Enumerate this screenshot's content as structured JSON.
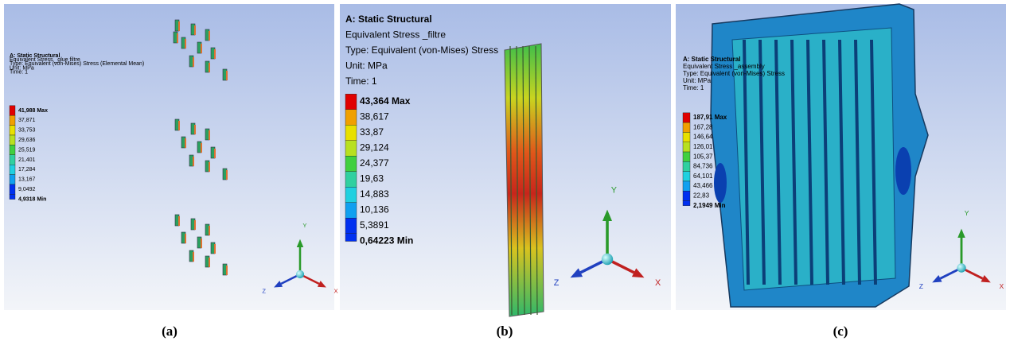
{
  "panels": [
    {
      "caption": "(a)",
      "header": [
        "A: Static Structural",
        "Equivalent Stress _glue filtre",
        "Type: Equivalent (von-Mises) Stress (Elemental Mean)",
        "Unit: MPa",
        "Time: 1"
      ],
      "legend": [
        "41,988 Max",
        "37,871",
        "33,753",
        "29,636",
        "25,519",
        "21,401",
        "17,284",
        "13,167",
        "9,0492",
        "4,9318 Min"
      ],
      "axes": [
        "X",
        "Y",
        "Z"
      ]
    },
    {
      "caption": "(b)",
      "header": [
        "A: Static Structural",
        "Equivalent Stress _filtre",
        "Type: Equivalent (von-Mises) Stress",
        "Unit: MPa",
        "Time: 1"
      ],
      "legend": [
        "43,364 Max",
        "38,617",
        "33,87",
        "29,124",
        "24,377",
        "19,63",
        "14,883",
        "10,136",
        "5,3891",
        "0,64223 Min"
      ],
      "axes": [
        "X",
        "Y",
        "Z"
      ]
    },
    {
      "caption": "(c)",
      "header": [
        "A: Static Structural",
        "Equivalent Stress _assembly",
        "Type: Equivalent (von-Mises) Stress",
        "Unit: MPa",
        "Time: 1"
      ],
      "legend": [
        "187,91 Max",
        "167,28",
        "146,64",
        "126,01",
        "105,37",
        "84,736",
        "64,101",
        "43,466",
        "22,83",
        "2,1949 Min"
      ],
      "axes": [
        "X",
        "Y",
        "Z"
      ]
    }
  ]
}
